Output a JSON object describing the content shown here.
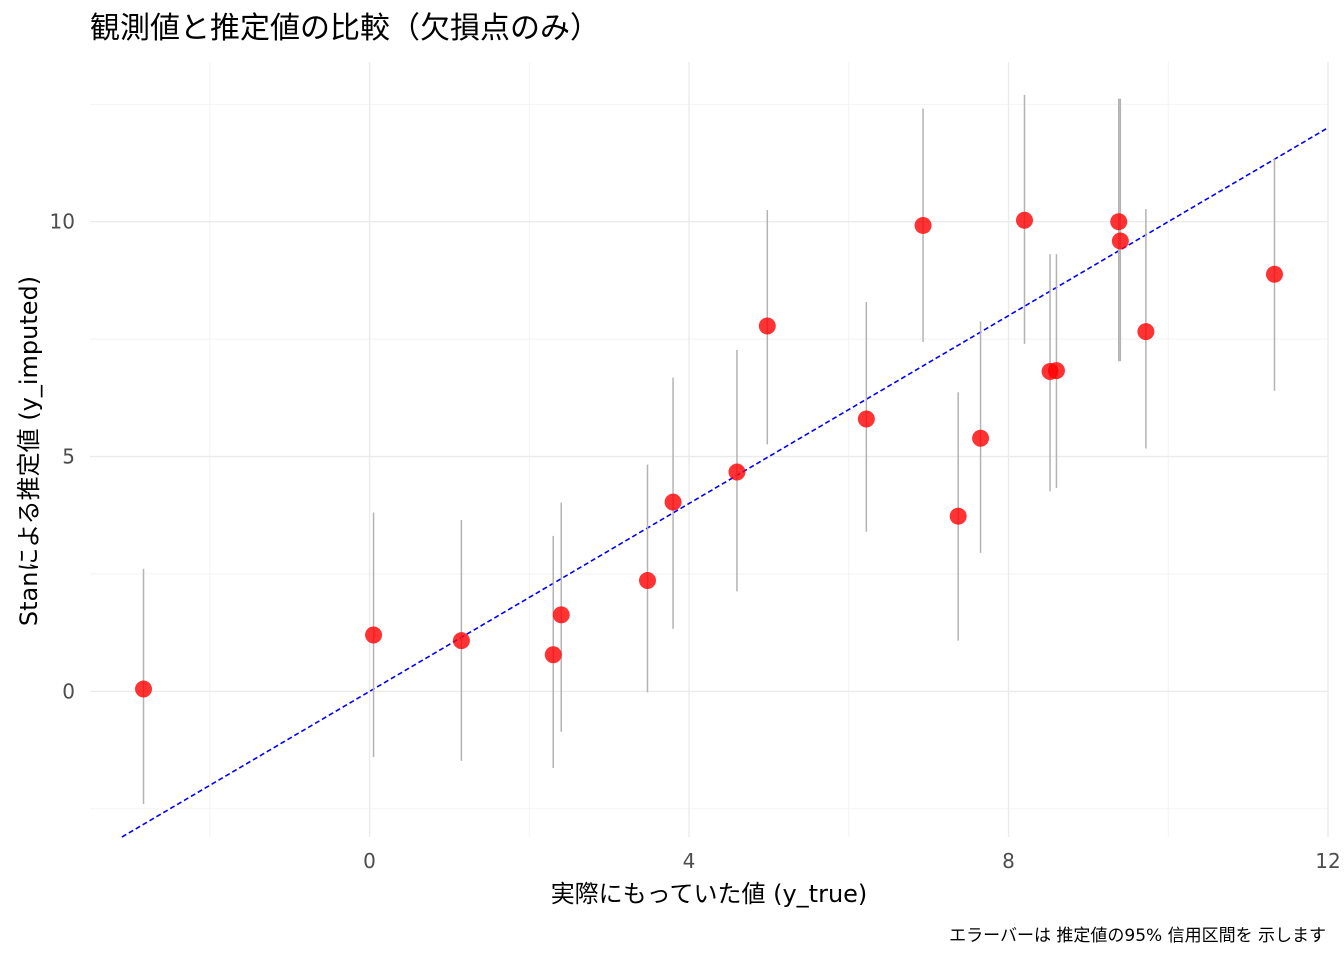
{
  "chart_data": {
    "type": "scatter",
    "title": "観測値と推定値の比較（欠損点のみ）",
    "xlabel": "実際にもっていた値 (y_true)",
    "ylabel": "Stanによる推定値 (y_imputed)",
    "caption": "エラーバーは 推定値の95% 信用区間を 示します",
    "xlim": [
      -3.5,
      12.0
    ],
    "ylim": [
      -3.1,
      13.4
    ],
    "x_ticks": [
      0,
      4,
      8,
      12
    ],
    "x_tick_labels": [
      "0",
      "4",
      "8",
      "12"
    ],
    "y_ticks": [
      0,
      5,
      10
    ],
    "y_tick_labels": [
      "0",
      "5",
      "10"
    ],
    "x_minor": [
      -2,
      2,
      6,
      10
    ],
    "y_minor": [
      -2.5,
      2.5,
      7.5,
      12.5
    ],
    "grid": true,
    "legend": "none",
    "reference_line": {
      "slope": 1,
      "intercept": 0,
      "style": "dashed",
      "color": "#0000ff"
    },
    "point_color": "#ff0000",
    "errorbar_color": "#b3b3b3",
    "series": [
      {
        "x": [
          -2.83,
          0.05,
          1.15,
          2.3,
          2.4,
          3.48,
          3.8,
          4.6,
          4.98,
          6.22,
          6.93,
          7.37,
          7.65,
          8.2,
          8.52,
          8.6,
          9.38,
          9.4,
          9.72,
          11.33
        ],
        "y": [
          0.05,
          1.2,
          1.08,
          0.78,
          1.63,
          2.36,
          4.03,
          4.67,
          7.78,
          5.8,
          9.92,
          3.73,
          5.39,
          10.03,
          6.81,
          6.83,
          10.0,
          9.59,
          7.66,
          8.88
        ],
        "lower": [
          -2.4,
          -1.4,
          -1.48,
          -1.63,
          -0.86,
          -0.02,
          1.33,
          2.13,
          5.26,
          3.4,
          7.44,
          1.08,
          2.95,
          7.4,
          4.26,
          4.33,
          7.03,
          7.03,
          5.17,
          6.4
        ],
        "upper": [
          2.61,
          3.81,
          3.65,
          3.31,
          4.02,
          4.83,
          6.68,
          7.27,
          10.25,
          8.29,
          12.41,
          6.37,
          7.88,
          12.7,
          9.31,
          9.31,
          12.62,
          12.62,
          10.27,
          11.34
        ]
      }
    ]
  }
}
